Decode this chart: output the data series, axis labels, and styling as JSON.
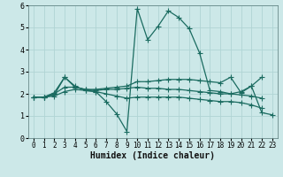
{
  "background_color": "#cce8e8",
  "grid_color": "#b0d4d4",
  "line_color": "#1a6b60",
  "xlabel": "Humidex (Indice chaleur)",
  "xlabel_fontsize": 7,
  "xlim": [
    -0.5,
    23.5
  ],
  "ylim": [
    0,
    6
  ],
  "xticks": [
    0,
    1,
    2,
    3,
    4,
    5,
    6,
    7,
    8,
    9,
    10,
    11,
    12,
    13,
    14,
    15,
    16,
    17,
    18,
    19,
    20,
    21,
    22,
    23
  ],
  "yticks": [
    0,
    1,
    2,
    3,
    4,
    5,
    6
  ],
  "series": [
    {
      "x": [
        0,
        1,
        2,
        3,
        4,
        5,
        6,
        7,
        8,
        9,
        10,
        11,
        12,
        13,
        14,
        15,
        16,
        17,
        18,
        19,
        20,
        21,
        22,
        23
      ],
      "y": [
        1.85,
        1.85,
        1.95,
        2.75,
        2.35,
        2.15,
        2.1,
        1.65,
        1.1,
        0.3,
        5.85,
        4.45,
        5.05,
        5.75,
        5.45,
        4.95,
        3.85,
        2.15,
        2.1,
        2.0,
        2.1,
        2.35,
        1.15,
        1.05
      ],
      "marker": "+",
      "markersize": 4,
      "linewidth": 0.9
    },
    {
      "x": [
        0,
        1,
        2,
        3,
        4,
        5,
        6,
        7,
        8,
        9,
        10,
        11,
        12,
        13,
        14,
        15,
        16,
        17,
        18,
        19,
        20,
        21,
        22
      ],
      "y": [
        1.85,
        1.85,
        2.05,
        2.75,
        2.3,
        2.2,
        2.2,
        2.25,
        2.3,
        2.35,
        2.55,
        2.55,
        2.6,
        2.65,
        2.65,
        2.65,
        2.6,
        2.55,
        2.5,
        2.75,
        2.05,
        2.35,
        2.75
      ],
      "marker": "+",
      "markersize": 4,
      "linewidth": 0.9
    },
    {
      "x": [
        0,
        1,
        2,
        3,
        4,
        5,
        6,
        7,
        8,
        9,
        10,
        11,
        12,
        13,
        14,
        15,
        16,
        17,
        18,
        19,
        20,
        21,
        22
      ],
      "y": [
        1.85,
        1.85,
        2.0,
        2.3,
        2.3,
        2.2,
        2.15,
        2.2,
        2.2,
        2.25,
        2.3,
        2.25,
        2.25,
        2.2,
        2.2,
        2.15,
        2.1,
        2.05,
        2.0,
        2.0,
        1.95,
        1.9,
        1.8
      ],
      "marker": "+",
      "markersize": 4,
      "linewidth": 0.9
    },
    {
      "x": [
        0,
        1,
        2,
        3,
        4,
        5,
        6,
        7,
        8,
        9,
        10,
        11,
        12,
        13,
        14,
        15,
        16,
        17,
        18,
        19,
        20,
        21,
        22
      ],
      "y": [
        1.85,
        1.85,
        1.9,
        2.1,
        2.2,
        2.15,
        2.1,
        2.0,
        1.9,
        1.8,
        1.85,
        1.85,
        1.85,
        1.85,
        1.85,
        1.8,
        1.75,
        1.7,
        1.65,
        1.65,
        1.6,
        1.5,
        1.35
      ],
      "marker": "+",
      "markersize": 4,
      "linewidth": 0.9
    }
  ]
}
